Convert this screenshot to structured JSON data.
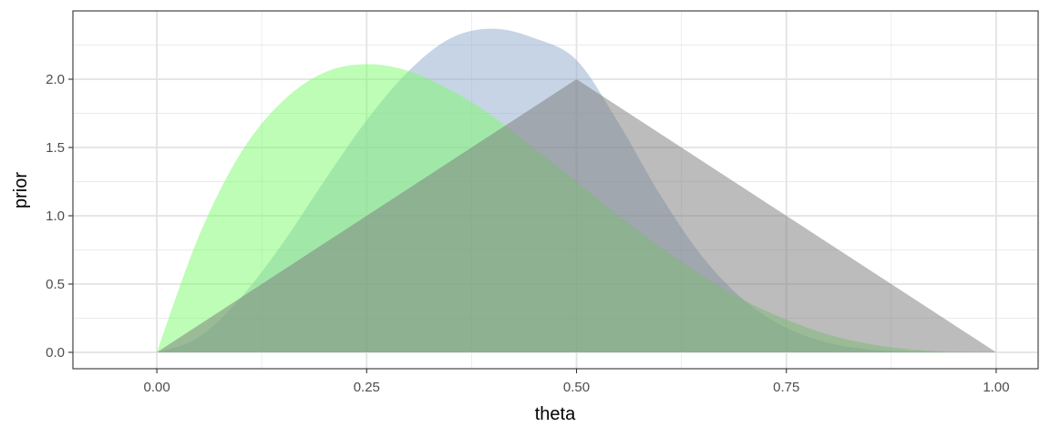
{
  "chart_data": {
    "type": "area",
    "xlabel": "theta",
    "ylabel": "prior",
    "xlim": [
      -0.1,
      1.05
    ],
    "ylim": [
      -0.12,
      2.5
    ],
    "x_ticks": [
      0.0,
      0.25,
      0.5,
      0.75,
      1.0
    ],
    "x_tick_labels": [
      "0.00",
      "0.25",
      "0.50",
      "0.75",
      "1.00"
    ],
    "y_ticks": [
      0.0,
      0.5,
      1.0,
      1.5,
      2.0
    ],
    "y_tick_labels": [
      "0.0",
      "0.5",
      "1.0",
      "1.5",
      "2.0"
    ],
    "grid": true,
    "series": [
      {
        "color": "#8fa9cc",
        "opacity": 0.5,
        "x": [
          0.0,
          0.05,
          0.1,
          0.15,
          0.2,
          0.25,
          0.3,
          0.35,
          0.4,
          0.45,
          0.5,
          0.55,
          0.6,
          0.65,
          0.7,
          0.75,
          0.8,
          0.85,
          0.9,
          0.95,
          1.0
        ],
        "y": [
          0.0,
          0.11,
          0.4,
          0.8,
          1.26,
          1.7,
          2.06,
          2.3,
          2.37,
          2.3,
          2.14,
          1.68,
          1.15,
          0.7,
          0.38,
          0.18,
          0.07,
          0.02,
          0.005,
          0.0,
          0.0
        ]
      },
      {
        "color": "#7bfc6c",
        "opacity": 0.5,
        "x": [
          0.0,
          0.05,
          0.1,
          0.15,
          0.2,
          0.25,
          0.3,
          0.35,
          0.4,
          0.45,
          0.5,
          0.55,
          0.6,
          0.65,
          0.7,
          0.75,
          0.8,
          0.85,
          0.9,
          0.95,
          1.0
        ],
        "y": [
          0.0,
          0.85,
          1.46,
          1.84,
          2.05,
          2.11,
          2.06,
          1.92,
          1.73,
          1.49,
          1.25,
          1.0,
          0.77,
          0.56,
          0.38,
          0.24,
          0.13,
          0.06,
          0.02,
          0.003,
          0.0
        ]
      },
      {
        "color": "#7a7a7a",
        "opacity": 0.5,
        "x": [
          0.0,
          0.5,
          1.0
        ],
        "y": [
          0.0,
          2.0,
          0.0
        ]
      }
    ]
  }
}
